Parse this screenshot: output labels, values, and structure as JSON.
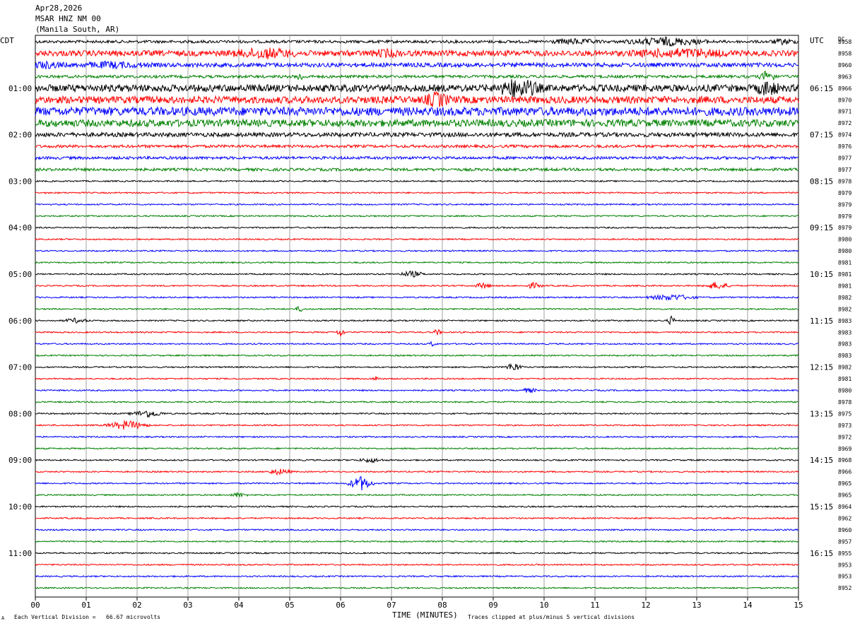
{
  "header": {
    "date": "Apr28,2026",
    "station": "MSAR HNZ NM 00",
    "location": "(Manila South, AR)"
  },
  "left_zone": "CDT",
  "right_zone": "UTC",
  "dc_label": "DC",
  "footer": {
    "scale_note": "Each Vertical Division =   66.67 microvolts",
    "xlabel": "TIME (MINUTES)",
    "clip_note": "Traces clipped at plus/minus 5 vertical divisions",
    "corner_mark": "A"
  },
  "chart_data": {
    "type": "line",
    "title": "MSAR HNZ NM 00",
    "xlabel": "TIME (MINUTES)",
    "xlim": [
      0,
      15
    ],
    "x_ticks": [
      "00",
      "01",
      "02",
      "03",
      "04",
      "05",
      "06",
      "07",
      "08",
      "09",
      "10",
      "11",
      "12",
      "13",
      "14",
      "15"
    ],
    "trace_colors": [
      "#000000",
      "#ff0000",
      "#0000ff",
      "#008000"
    ],
    "left_hour_labels": [
      "01:00",
      "02:00",
      "03:00",
      "04:00",
      "05:00",
      "06:00",
      "07:00",
      "08:00",
      "09:00",
      "10:00",
      "11:00"
    ],
    "right_hour_labels": [
      "06:15",
      "07:15",
      "08:15",
      "09:15",
      "10:15",
      "11:15",
      "12:15",
      "13:15",
      "14:15",
      "15:15",
      "16:15"
    ],
    "dc_offsets": [
      "8958",
      "8958",
      "8960",
      "8963",
      "8966",
      "8970",
      "8971",
      "8972",
      "8974",
      "8976",
      "8977",
      "8977",
      "8978",
      "8979",
      "8979",
      "8979",
      "8979",
      "8980",
      "8980",
      "8981",
      "8981",
      "8981",
      "8982",
      "8982",
      "8983",
      "8983",
      "8983",
      "8983",
      "8982",
      "8981",
      "8980",
      "8978",
      "8975",
      "8973",
      "8972",
      "8969",
      "8968",
      "8966",
      "8965",
      "8965",
      "8964",
      "8962",
      "8960",
      "8957",
      "8955",
      "8953",
      "8953",
      "8952"
    ],
    "trace_noise": [
      2,
      4,
      3,
      2,
      5,
      5,
      6,
      5,
      3,
      2,
      2,
      2,
      1,
      1,
      1,
      1,
      1,
      1,
      1,
      1,
      1,
      1,
      1,
      1,
      1,
      1,
      1,
      1,
      1,
      1,
      1,
      1,
      1,
      1,
      1,
      1,
      1,
      1,
      1,
      1,
      1,
      1,
      1,
      1,
      1,
      1,
      1,
      1
    ],
    "events": [
      {
        "trace": 0,
        "minute": 12.4,
        "amp": 5,
        "dur": 1.0
      },
      {
        "trace": 0,
        "minute": 10.6,
        "amp": 3,
        "dur": 0.6
      },
      {
        "trace": 0,
        "minute": 14.7,
        "amp": 3,
        "dur": 0.3
      },
      {
        "trace": 1,
        "minute": 4.5,
        "amp": 5,
        "dur": 0.8
      },
      {
        "trace": 1,
        "minute": 6.9,
        "amp": 3,
        "dur": 0.4
      },
      {
        "trace": 1,
        "minute": 12.7,
        "amp": 4,
        "dur": 1.2
      },
      {
        "trace": 2,
        "minute": 0.2,
        "amp": 3,
        "dur": 0.5
      },
      {
        "trace": 2,
        "minute": 1.5,
        "amp": 3,
        "dur": 0.8
      },
      {
        "trace": 3,
        "minute": 5.2,
        "amp": 5,
        "dur": 0.1
      },
      {
        "trace": 3,
        "minute": 14.4,
        "amp": 8,
        "dur": 0.2
      },
      {
        "trace": 4,
        "minute": 9.5,
        "amp": 12,
        "dur": 0.5
      },
      {
        "trace": 4,
        "minute": 14.4,
        "amp": 8,
        "dur": 0.3
      },
      {
        "trace": 5,
        "minute": 7.9,
        "amp": 8,
        "dur": 0.3
      },
      {
        "trace": 20,
        "minute": 7.4,
        "amp": 4,
        "dur": 0.3
      },
      {
        "trace": 21,
        "minute": 8.8,
        "amp": 4,
        "dur": 0.2
      },
      {
        "trace": 21,
        "minute": 9.8,
        "amp": 4,
        "dur": 0.2
      },
      {
        "trace": 21,
        "minute": 13.4,
        "amp": 5,
        "dur": 0.3
      },
      {
        "trace": 22,
        "minute": 12.5,
        "amp": 4,
        "dur": 0.6
      },
      {
        "trace": 23,
        "minute": 5.2,
        "amp": 4,
        "dur": 0.1
      },
      {
        "trace": 24,
        "minute": 0.8,
        "amp": 3,
        "dur": 0.3
      },
      {
        "trace": 24,
        "minute": 12.5,
        "amp": 6,
        "dur": 0.1
      },
      {
        "trace": 25,
        "minute": 6.0,
        "amp": 6,
        "dur": 0.1
      },
      {
        "trace": 25,
        "minute": 7.9,
        "amp": 4,
        "dur": 0.1
      },
      {
        "trace": 26,
        "minute": 7.8,
        "amp": 3,
        "dur": 0.1
      },
      {
        "trace": 28,
        "minute": 9.4,
        "amp": 6,
        "dur": 0.2
      },
      {
        "trace": 29,
        "minute": 6.7,
        "amp": 3,
        "dur": 0.1
      },
      {
        "trace": 30,
        "minute": 9.7,
        "amp": 3,
        "dur": 0.2
      },
      {
        "trace": 32,
        "minute": 2.2,
        "amp": 5,
        "dur": 0.4
      },
      {
        "trace": 33,
        "minute": 1.8,
        "amp": 6,
        "dur": 0.5
      },
      {
        "trace": 36,
        "minute": 6.6,
        "amp": 3,
        "dur": 0.3
      },
      {
        "trace": 37,
        "minute": 4.8,
        "amp": 4,
        "dur": 0.3
      },
      {
        "trace": 38,
        "minute": 6.4,
        "amp": 10,
        "dur": 0.3
      },
      {
        "trace": 39,
        "minute": 4.0,
        "amp": 3,
        "dur": 0.2
      }
    ]
  }
}
